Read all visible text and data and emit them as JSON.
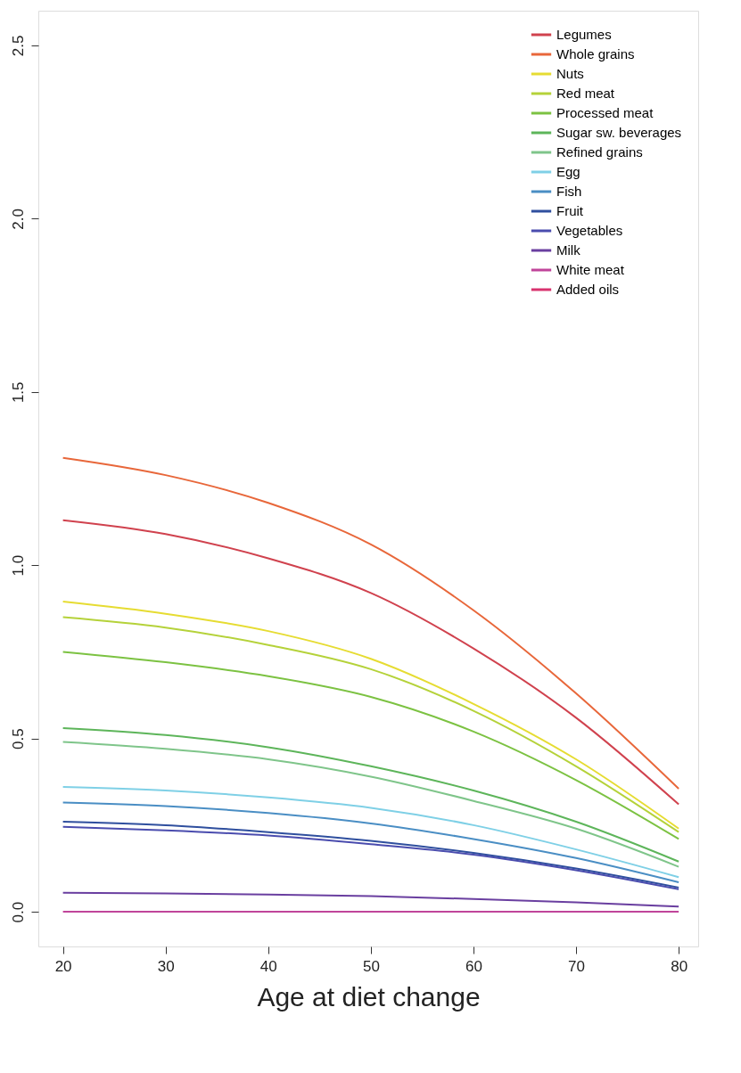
{
  "chart_data": {
    "type": "line",
    "xlabel": "Age at diet change",
    "x": [
      20,
      30,
      40,
      50,
      60,
      70,
      80
    ],
    "xlim": [
      17.6,
      81.9
    ],
    "xticks": [
      20,
      30,
      40,
      50,
      60,
      70,
      80
    ],
    "ylim": [
      -0.1,
      2.6
    ],
    "yticks": [
      {
        "value": 0,
        "label": "0.0"
      },
      0.5,
      {
        "value": 1,
        "label": "1.0"
      },
      1.5,
      {
        "value": 2,
        "label": "2.0"
      },
      2.5
    ],
    "grid": false,
    "legend": "top right",
    "series": [
      {
        "name": "Legumes",
        "color": "#d0424e",
        "values": [
          1.13,
          1.09,
          1.02,
          0.92,
          0.76,
          0.56,
          0.31
        ]
      },
      {
        "name": "Whole grains",
        "color": "#e8673a",
        "values": [
          1.31,
          1.26,
          1.18,
          1.06,
          0.87,
          0.63,
          0.355
        ]
      },
      {
        "name": "Nuts",
        "color": "#e6dc32",
        "values": [
          0.895,
          0.86,
          0.81,
          0.73,
          0.6,
          0.44,
          0.24
        ]
      },
      {
        "name": "Red meat",
        "color": "#b5d23a",
        "values": [
          0.85,
          0.82,
          0.77,
          0.7,
          0.58,
          0.42,
          0.23
        ]
      },
      {
        "name": "Processed meat",
        "color": "#7cc242",
        "values": [
          0.75,
          0.72,
          0.68,
          0.62,
          0.52,
          0.38,
          0.21
        ]
      },
      {
        "name": "Sugar  sw. beverages",
        "color": "#5db55a",
        "values": [
          0.53,
          0.51,
          0.475,
          0.42,
          0.35,
          0.26,
          0.145
        ]
      },
      {
        "name": "Refined grains",
        "color": "#7fc58a",
        "values": [
          0.49,
          0.47,
          0.44,
          0.39,
          0.32,
          0.24,
          0.13
        ]
      },
      {
        "name": "Egg",
        "color": "#7fd0e6",
        "values": [
          0.36,
          0.35,
          0.33,
          0.3,
          0.25,
          0.18,
          0.1
        ]
      },
      {
        "name": "Fish",
        "color": "#4a8ec4",
        "values": [
          0.315,
          0.305,
          0.285,
          0.255,
          0.21,
          0.155,
          0.085
        ]
      },
      {
        "name": "Fruit",
        "color": "#2f4f9e",
        "values": [
          0.26,
          0.25,
          0.23,
          0.205,
          0.17,
          0.125,
          0.07
        ]
      },
      {
        "name": "Vegetables",
        "color": "#4a4cae",
        "values": [
          0.245,
          0.235,
          0.22,
          0.195,
          0.165,
          0.12,
          0.065
        ]
      },
      {
        "name": "Milk",
        "color": "#6a3fa0",
        "values": [
          0.055,
          0.053,
          0.05,
          0.045,
          0.037,
          0.027,
          0.015
        ]
      },
      {
        "name": "White meat",
        "color": "#c0449a",
        "values": [
          0,
          0,
          0,
          0,
          0,
          0,
          0
        ]
      },
      {
        "name": "Added oils",
        "color": "#d8336e",
        "values": [
          null,
          null,
          null,
          null,
          null,
          null,
          null
        ]
      }
    ]
  }
}
